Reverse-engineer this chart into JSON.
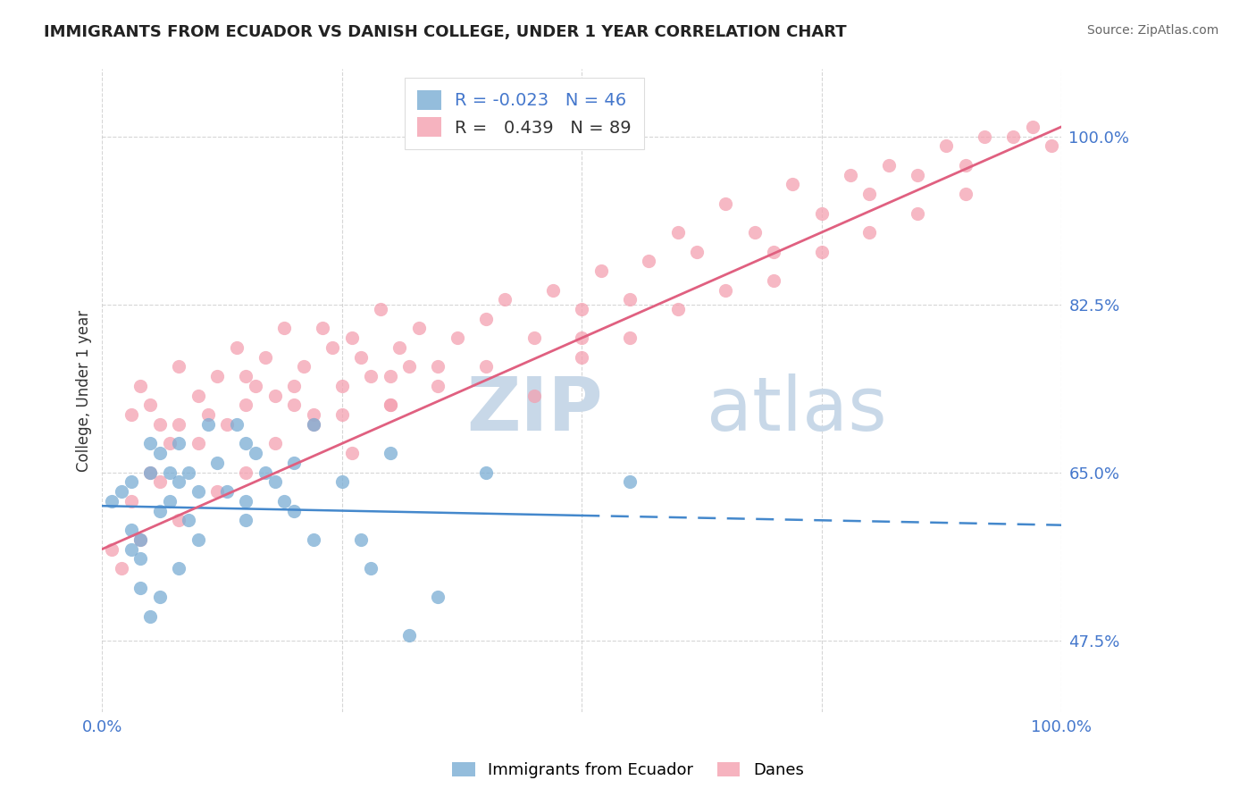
{
  "title": "IMMIGRANTS FROM ECUADOR VS DANISH COLLEGE, UNDER 1 YEAR CORRELATION CHART",
  "source": "Source: ZipAtlas.com",
  "ylabel": "College, Under 1 year",
  "xlim": [
    0.0,
    100.0
  ],
  "ylim": [
    40.0,
    107.0
  ],
  "yticks": [
    47.5,
    65.0,
    82.5,
    100.0
  ],
  "ytick_labels": [
    "47.5%",
    "65.0%",
    "82.5%",
    "100.0%"
  ],
  "background_color": "#ffffff",
  "grid_color": "#cccccc",
  "ecuador_color": "#7aadd4",
  "danes_color": "#f4a0b0",
  "ecuador_R": -0.023,
  "ecuador_N": 46,
  "danes_R": 0.439,
  "danes_N": 89,
  "watermark": "ZIPatlas",
  "watermark_color": "#c8d8e8",
  "title_color": "#222222",
  "source_color": "#666666",
  "axis_tick_color": "#4477cc",
  "ecuador_line_color": "#4488cc",
  "danes_line_color": "#e06080",
  "ecuador_trend_start_y": 61.5,
  "ecuador_trend_end_y": 59.5,
  "ecuador_solid_end_x": 50,
  "danes_trend_start_y": 57.0,
  "danes_trend_end_y": 101.0,
  "ecuador_points_x": [
    1,
    2,
    3,
    3,
    4,
    4,
    5,
    5,
    6,
    6,
    7,
    7,
    8,
    8,
    9,
    9,
    10,
    10,
    11,
    12,
    13,
    14,
    15,
    15,
    16,
    17,
    18,
    19,
    20,
    22,
    25,
    27,
    30,
    32,
    35,
    55,
    8,
    6,
    5,
    4,
    3,
    22,
    20,
    15,
    28,
    40
  ],
  "ecuador_points_y": [
    62,
    63,
    57,
    64,
    58,
    56,
    65,
    68,
    61,
    67,
    62,
    65,
    64,
    68,
    60,
    65,
    63,
    58,
    70,
    66,
    63,
    70,
    68,
    62,
    67,
    65,
    64,
    62,
    66,
    70,
    64,
    58,
    67,
    48,
    52,
    64,
    55,
    52,
    50,
    53,
    59,
    58,
    61,
    60,
    55,
    65
  ],
  "danes_points_x": [
    3,
    4,
    5,
    6,
    7,
    8,
    10,
    11,
    12,
    13,
    14,
    15,
    16,
    17,
    18,
    19,
    20,
    21,
    22,
    23,
    24,
    25,
    26,
    27,
    28,
    29,
    30,
    31,
    32,
    33,
    35,
    37,
    40,
    42,
    45,
    47,
    50,
    52,
    55,
    57,
    60,
    62,
    65,
    68,
    70,
    72,
    75,
    78,
    80,
    82,
    85,
    88,
    90,
    92,
    95,
    97,
    99,
    5,
    8,
    12,
    15,
    18,
    22,
    26,
    30,
    35,
    40,
    45,
    50,
    55,
    60,
    65,
    70,
    75,
    80,
    85,
    90,
    1,
    2,
    3,
    4,
    6,
    8,
    10,
    15,
    20,
    25,
    30,
    50
  ],
  "danes_points_y": [
    71,
    74,
    72,
    70,
    68,
    76,
    73,
    71,
    75,
    70,
    78,
    72,
    74,
    77,
    73,
    80,
    74,
    76,
    71,
    80,
    78,
    74,
    79,
    77,
    75,
    82,
    72,
    78,
    76,
    80,
    76,
    79,
    81,
    83,
    79,
    84,
    82,
    86,
    83,
    87,
    90,
    88,
    93,
    90,
    88,
    95,
    92,
    96,
    94,
    97,
    96,
    99,
    97,
    100,
    100,
    101,
    99,
    65,
    60,
    63,
    65,
    68,
    70,
    67,
    72,
    74,
    76,
    73,
    77,
    79,
    82,
    84,
    85,
    88,
    90,
    92,
    94,
    57,
    55,
    62,
    58,
    64,
    70,
    68,
    75,
    72,
    71,
    75,
    79
  ]
}
